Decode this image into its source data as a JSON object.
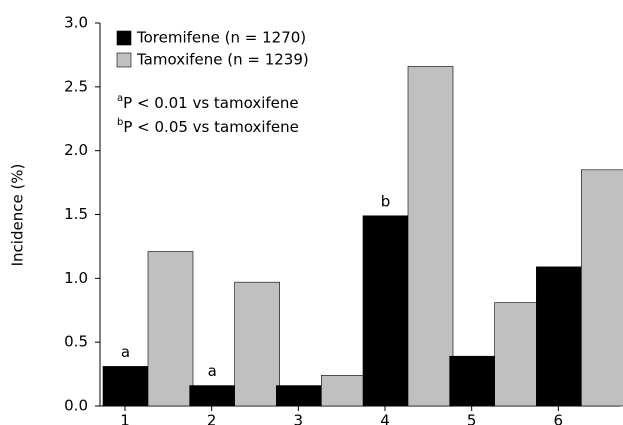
{
  "chart_data": {
    "type": "bar",
    "y_label": "Incidence (%)",
    "categories": [
      "1",
      "2",
      "3",
      "4",
      "5",
      "6"
    ],
    "series": [
      {
        "name": "Toremifene (n = 1270)",
        "color": "#000000",
        "values": [
          0.31,
          0.16,
          0.16,
          1.49,
          0.39,
          1.09
        ],
        "bar_labels": [
          "a",
          "a",
          null,
          "b",
          null,
          null
        ]
      },
      {
        "name": "Tamoxifene (n = 1239)",
        "color": "#c0c0c0",
        "values": [
          1.21,
          0.97,
          0.24,
          2.66,
          0.81,
          1.85
        ]
      }
    ],
    "annotations": [
      {
        "marker": "a",
        "text": "P < 0.01 vs tamoxifene"
      },
      {
        "marker": "b",
        "text": "P < 0.05 vs tamoxifene"
      }
    ],
    "ylim": [
      0,
      3
    ],
    "yticks": [
      {
        "value": 0,
        "label": "0.0"
      },
      0.5,
      {
        "value": 1,
        "label": "1.0"
      },
      1.5,
      {
        "value": 2,
        "label": "2.0"
      },
      2.5,
      {
        "value": 3,
        "label": "3.0"
      }
    ],
    "grid": false
  }
}
